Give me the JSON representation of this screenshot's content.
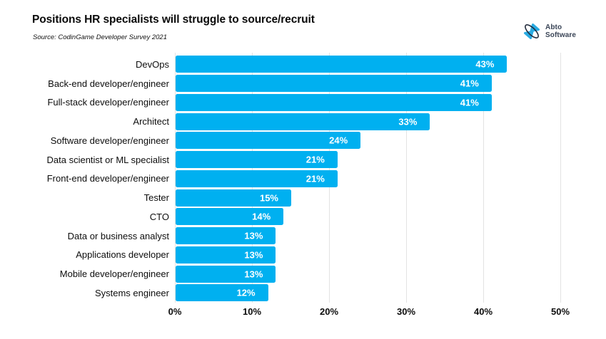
{
  "header": {
    "title": "Positions HR specialists will struggle to source/recruit",
    "source": "Source: CodinGame Developer Survey 2021",
    "logo": {
      "line1": "Abto",
      "line2": "Software",
      "icon": "abto-orbit-icon",
      "accent_color": "#29ABE2",
      "dark_color": "#232c3d"
    }
  },
  "chart_data": {
    "type": "bar",
    "orientation": "horizontal",
    "title": "Positions HR specialists will struggle to source/recruit",
    "subtitle": "Source: CodinGame Developer Survey 2021",
    "categories": [
      "DevOps",
      "Back-end developer/engineer",
      "Full-stack developer/engineer",
      "Architect",
      "Software developer/engineer",
      "Data scientist or ML specialist",
      "Front-end developer/engineer",
      "Tester",
      "CTO",
      "Data or business analyst",
      "Applications developer",
      "Mobile developer/engineer",
      "Systems engineer"
    ],
    "values": [
      43,
      41,
      41,
      33,
      24,
      21,
      21,
      15,
      14,
      13,
      13,
      13,
      12
    ],
    "value_labels": [
      "43%",
      "41%",
      "41%",
      "33%",
      "24%",
      "21%",
      "21%",
      "15%",
      "14%",
      "13%",
      "13%",
      "13%",
      "12%"
    ],
    "x_ticks": [
      "0%",
      "10%",
      "20%",
      "30%",
      "40%",
      "50%"
    ],
    "x_tick_values": [
      0,
      10,
      20,
      30,
      40,
      50
    ],
    "xlim": [
      0,
      50
    ],
    "xlabel": "",
    "ylabel": "",
    "grid": true,
    "legend": false,
    "bar_color": "#00B0F0",
    "value_label_color": "#FFFFFF",
    "gridline_color": "#E3E3E3"
  }
}
